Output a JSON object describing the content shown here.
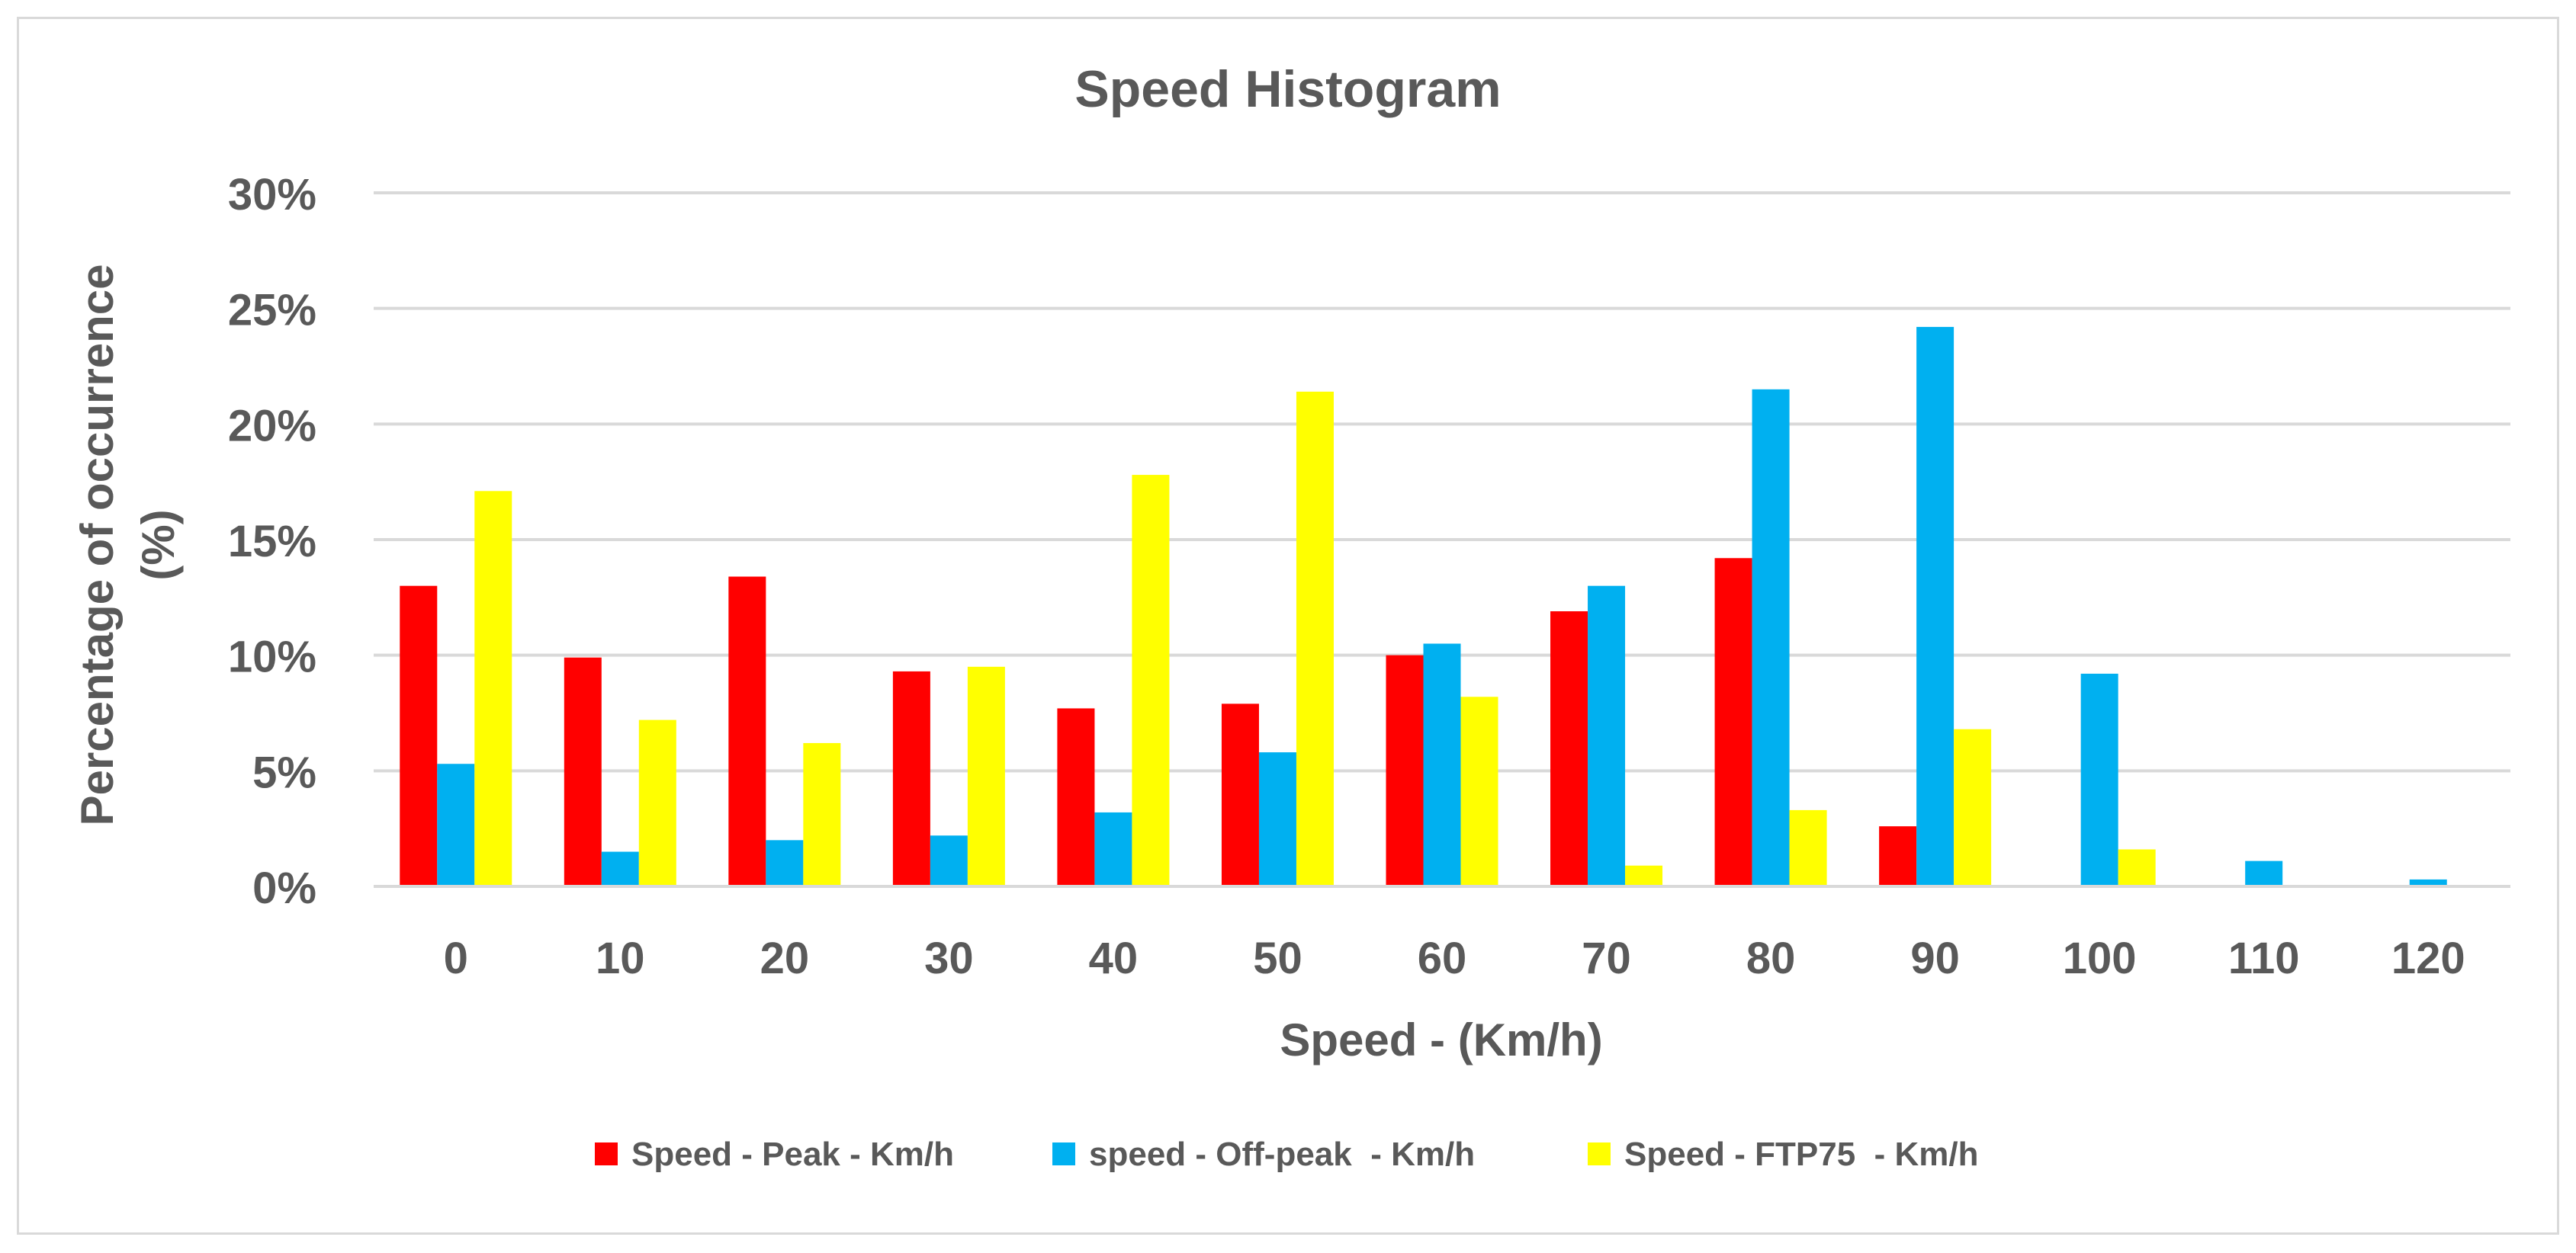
{
  "chart_data": {
    "type": "bar",
    "title": "Speed Histogram",
    "xlabel": "Speed - (Km/h)",
    "ylabel_lines": [
      "Percentage of occurrence",
      "(%)"
    ],
    "categories": [
      "0",
      "10",
      "20",
      "30",
      "40",
      "50",
      "60",
      "70",
      "80",
      "90",
      "100",
      "110",
      "120"
    ],
    "ylim": [
      0,
      0.3
    ],
    "yticks": [
      0,
      0.05,
      0.1,
      0.15,
      0.2,
      0.25,
      0.3
    ],
    "ytick_labels": [
      "0%",
      "5%",
      "10%",
      "15%",
      "20%",
      "25%",
      "30%"
    ],
    "grid": true,
    "legend_position": "bottom",
    "series": [
      {
        "name": "Speed - Peak - Km/h",
        "color": "#ff0000",
        "values": [
          0.13,
          0.099,
          0.134,
          0.093,
          0.077,
          0.079,
          0.1,
          0.119,
          0.142,
          0.026,
          0,
          0,
          0
        ]
      },
      {
        "name": "speed - Off-peak  - Km/h",
        "color": "#00b0f0",
        "values": [
          0.053,
          0.015,
          0.02,
          0.022,
          0.032,
          0.058,
          0.105,
          0.13,
          0.215,
          0.242,
          0.092,
          0.011,
          0.003
        ]
      },
      {
        "name": "Speed - FTP75  - Km/h",
        "color": "#ffff00",
        "values": [
          0.171,
          0.072,
          0.062,
          0.095,
          0.178,
          0.214,
          0.082,
          0.009,
          0.033,
          0.068,
          0.016,
          0,
          0
        ]
      }
    ],
    "colors": {
      "gridline": "#d9d9d9",
      "axis_text": "#595959"
    }
  }
}
